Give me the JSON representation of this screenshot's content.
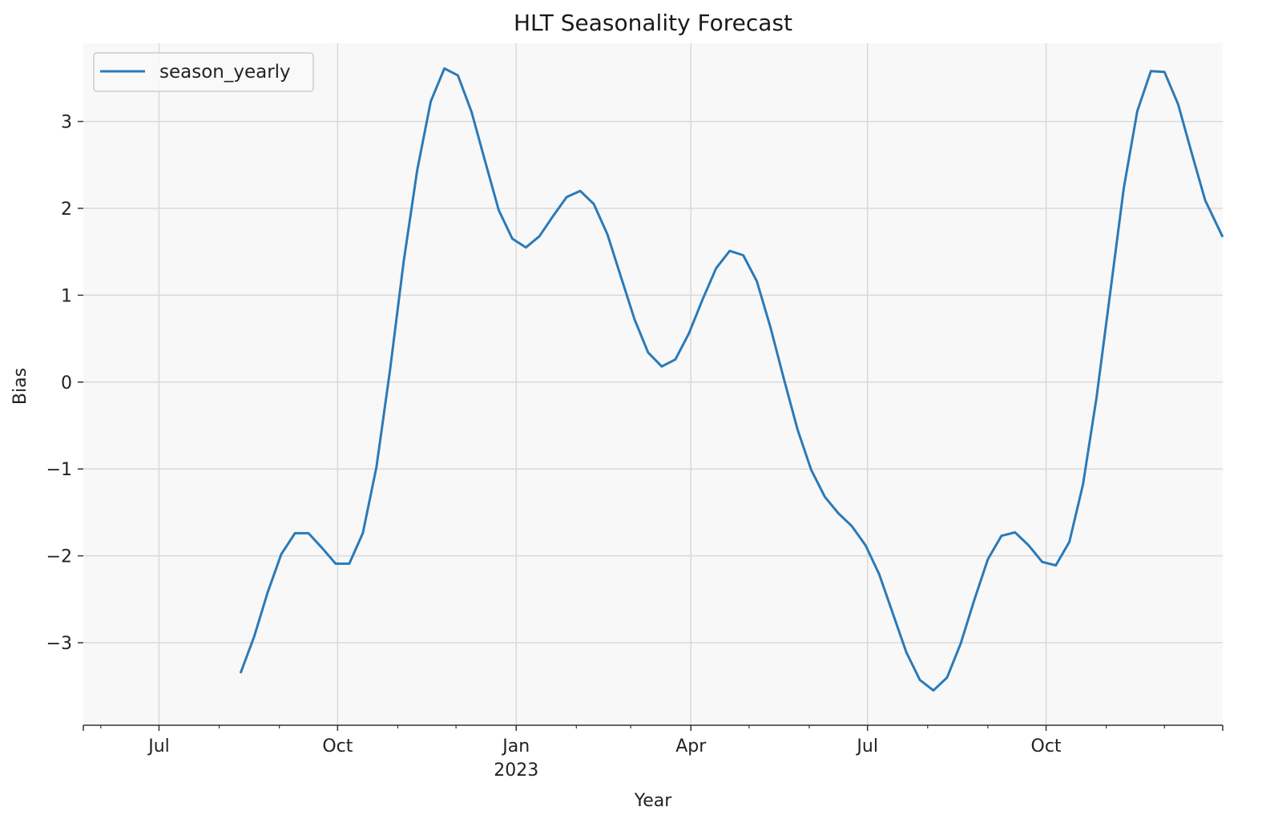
{
  "chart_data": {
    "type": "line",
    "title": "HLT Seasonality Forecast",
    "xlabel": "Year",
    "ylabel": "Bias",
    "x_range": [
      "2022-05-23",
      "2023-12-31"
    ],
    "ylim": [
      -3.95,
      3.9
    ],
    "grid": true,
    "legend_position": "top-left",
    "colors": {
      "plot_background": "#f8f8f8",
      "grid": "#d9d9d9",
      "series": "#2a7ab8"
    },
    "x_ticks": [
      {
        "date": "2022-07-01",
        "label": "Jul",
        "sublabel": ""
      },
      {
        "date": "2022-10-01",
        "label": "Oct",
        "sublabel": ""
      },
      {
        "date": "2023-01-01",
        "label": "Jan",
        "sublabel": "2023"
      },
      {
        "date": "2023-04-01",
        "label": "Apr",
        "sublabel": ""
      },
      {
        "date": "2023-07-01",
        "label": "Jul",
        "sublabel": ""
      },
      {
        "date": "2023-10-01",
        "label": "Oct",
        "sublabel": ""
      }
    ],
    "x_minor_ticks": [
      "2022-06-01",
      "2022-08-01",
      "2022-09-01",
      "2022-11-01",
      "2022-12-01",
      "2023-02-01",
      "2023-03-01",
      "2023-05-01",
      "2023-06-01",
      "2023-08-01",
      "2023-09-01",
      "2023-11-01",
      "2023-12-01"
    ],
    "y_ticks": [
      {
        "value": 3,
        "label": "3"
      },
      {
        "value": 2,
        "label": "2"
      },
      {
        "value": 1,
        "label": "1"
      },
      {
        "value": 0,
        "label": "0"
      },
      {
        "value": -1,
        "label": "−1"
      },
      {
        "value": -2,
        "label": "−2"
      },
      {
        "value": -3,
        "label": "−3"
      }
    ],
    "series": [
      {
        "name": "season_yearly",
        "color": "#2a7ab8",
        "points": [
          [
            "2022-08-12",
            -3.35
          ],
          [
            "2022-08-19",
            -2.93
          ],
          [
            "2022-08-26",
            -2.42
          ],
          [
            "2022-09-02",
            -1.98
          ],
          [
            "2022-09-09",
            -1.74
          ],
          [
            "2022-09-16",
            -1.74
          ],
          [
            "2022-09-23",
            -1.91
          ],
          [
            "2022-09-30",
            -2.09
          ],
          [
            "2022-10-07",
            -2.09
          ],
          [
            "2022-10-14",
            -1.74
          ],
          [
            "2022-10-21",
            -0.98
          ],
          [
            "2022-10-28",
            0.14
          ],
          [
            "2022-11-04",
            1.38
          ],
          [
            "2022-11-11",
            2.44
          ],
          [
            "2022-11-18",
            3.23
          ],
          [
            "2022-11-25",
            3.61
          ],
          [
            "2022-12-02",
            3.53
          ],
          [
            "2022-12-09",
            3.11
          ],
          [
            "2022-12-16",
            2.54
          ],
          [
            "2022-12-23",
            1.98
          ],
          [
            "2022-12-30",
            1.65
          ],
          [
            "2023-01-06",
            1.55
          ],
          [
            "2023-01-13",
            1.68
          ],
          [
            "2023-01-20",
            1.91
          ],
          [
            "2023-01-27",
            2.13
          ],
          [
            "2023-02-03",
            2.2
          ],
          [
            "2023-02-10",
            2.05
          ],
          [
            "2023-02-17",
            1.7
          ],
          [
            "2023-02-24",
            1.21
          ],
          [
            "2023-03-03",
            0.72
          ],
          [
            "2023-03-10",
            0.34
          ],
          [
            "2023-03-17",
            0.18
          ],
          [
            "2023-03-24",
            0.26
          ],
          [
            "2023-03-31",
            0.56
          ],
          [
            "2023-04-07",
            0.95
          ],
          [
            "2023-04-14",
            1.31
          ],
          [
            "2023-04-21",
            1.51
          ],
          [
            "2023-04-28",
            1.46
          ],
          [
            "2023-05-05",
            1.16
          ],
          [
            "2023-05-12",
            0.63
          ],
          [
            "2023-05-19",
            0.03
          ],
          [
            "2023-05-26",
            -0.55
          ],
          [
            "2023-06-02",
            -1.01
          ],
          [
            "2023-06-09",
            -1.32
          ],
          [
            "2023-06-16",
            -1.51
          ],
          [
            "2023-06-23",
            -1.66
          ],
          [
            "2023-06-30",
            -1.88
          ],
          [
            "2023-07-07",
            -2.21
          ],
          [
            "2023-07-14",
            -2.66
          ],
          [
            "2023-07-21",
            -3.11
          ],
          [
            "2023-07-28",
            -3.43
          ],
          [
            "2023-08-04",
            -3.55
          ],
          [
            "2023-08-11",
            -3.4
          ],
          [
            "2023-08-18",
            -3.01
          ],
          [
            "2023-08-25",
            -2.51
          ],
          [
            "2023-09-01",
            -2.04
          ],
          [
            "2023-09-08",
            -1.77
          ],
          [
            "2023-09-15",
            -1.73
          ],
          [
            "2023-09-22",
            -1.88
          ],
          [
            "2023-09-29",
            -2.07
          ],
          [
            "2023-10-06",
            -2.11
          ],
          [
            "2023-10-13",
            -1.84
          ],
          [
            "2023-10-20",
            -1.18
          ],
          [
            "2023-10-27",
            -0.18
          ],
          [
            "2023-11-03",
            1.02
          ],
          [
            "2023-11-10",
            2.23
          ],
          [
            "2023-11-17",
            3.12
          ],
          [
            "2023-11-24",
            3.58
          ],
          [
            "2023-12-01",
            3.57
          ],
          [
            "2023-12-08",
            3.2
          ],
          [
            "2023-12-15",
            2.64
          ],
          [
            "2023-12-22",
            2.09
          ],
          [
            "2023-12-31",
            1.67
          ]
        ]
      }
    ]
  }
}
